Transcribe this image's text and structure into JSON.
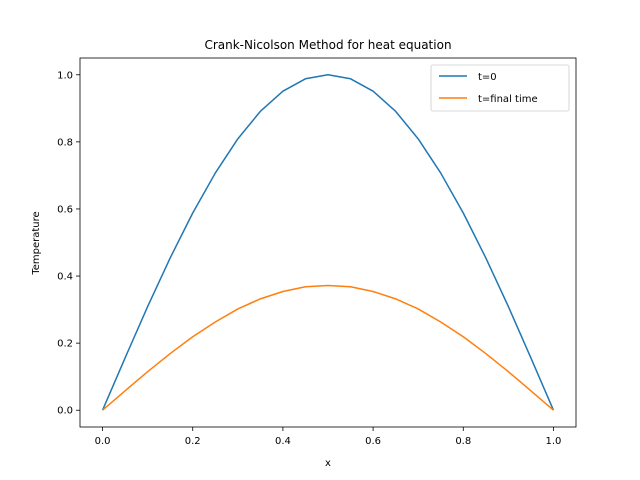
{
  "chart_data": {
    "type": "line",
    "title": "Crank-Nicolson Method for heat equation",
    "xlabel": "x",
    "ylabel": "Temperature",
    "xlim": [
      -0.05,
      1.05
    ],
    "ylim": [
      -0.05,
      1.05
    ],
    "xticks": [
      0.0,
      0.2,
      0.4,
      0.6,
      0.8,
      1.0
    ],
    "xtick_labels": [
      "0.0",
      "0.2",
      "0.4",
      "0.6",
      "0.8",
      "1.0"
    ],
    "yticks": [
      0.0,
      0.2,
      0.4,
      0.6,
      0.8,
      1.0
    ],
    "ytick_labels": [
      "0.0",
      "0.2",
      "0.4",
      "0.6",
      "0.8",
      "1.0"
    ],
    "grid": false,
    "legend_position": "top-right",
    "x": [
      0.0,
      0.05,
      0.1,
      0.15,
      0.2,
      0.25,
      0.3,
      0.35,
      0.4,
      0.45,
      0.5,
      0.55,
      0.6,
      0.65,
      0.7,
      0.75,
      0.8,
      0.85,
      0.9,
      0.95,
      1.0
    ],
    "series": [
      {
        "name": "t=0",
        "color": "#1f77b4",
        "values": [
          0.0,
          0.156,
          0.309,
          0.454,
          0.588,
          0.707,
          0.809,
          0.891,
          0.951,
          0.988,
          1.0,
          0.988,
          0.951,
          0.891,
          0.809,
          0.707,
          0.588,
          0.454,
          0.309,
          0.156,
          0.0
        ]
      },
      {
        "name": "t=final time",
        "color": "#ff7f0e",
        "values": [
          0.0,
          0.058,
          0.115,
          0.169,
          0.219,
          0.263,
          0.302,
          0.332,
          0.354,
          0.368,
          0.372,
          0.368,
          0.354,
          0.332,
          0.302,
          0.263,
          0.219,
          0.169,
          0.115,
          0.058,
          0.0
        ]
      }
    ]
  }
}
